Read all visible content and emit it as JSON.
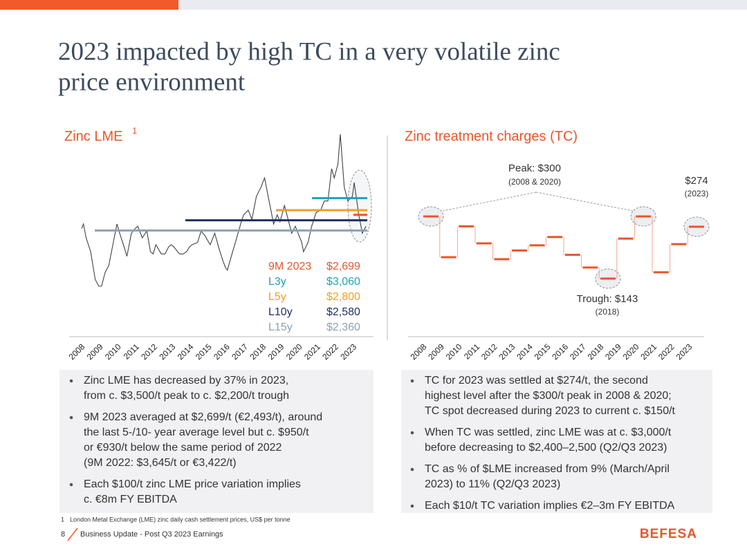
{
  "header": {
    "title_lines": [
      "2023 impacted by high TC in a very volatile zinc",
      "price environment"
    ]
  },
  "chart_data": [
    {
      "type": "line",
      "title": "Zinc LME",
      "title_footnote": "1",
      "x": [
        2008.0,
        2008.1,
        2008.25,
        2008.5,
        2008.75,
        2008.95,
        2009.1,
        2009.3,
        2009.5,
        2009.75,
        2009.95,
        2010.1,
        2010.35,
        2010.5,
        2010.75,
        2010.95,
        2011.1,
        2011.35,
        2011.6,
        2011.8,
        2011.95,
        2012.1,
        2012.4,
        2012.6,
        2012.8,
        2012.95,
        2013.1,
        2013.4,
        2013.6,
        2013.8,
        2013.95,
        2014.1,
        2014.4,
        2014.6,
        2014.8,
        2014.95,
        2015.1,
        2015.35,
        2015.6,
        2015.8,
        2015.95,
        2016.05,
        2016.3,
        2016.6,
        2016.85,
        2016.95,
        2017.2,
        2017.4,
        2017.65,
        2017.9,
        2018.1,
        2018.3,
        2018.6,
        2018.8,
        2018.95,
        2019.2,
        2019.4,
        2019.6,
        2019.8,
        2019.95,
        2020.15,
        2020.25,
        2020.5,
        2020.7,
        2020.95,
        2021.2,
        2021.4,
        2021.6,
        2021.8,
        2021.95,
        2022.15,
        2022.28,
        2022.5,
        2022.7,
        2022.95,
        2023.05,
        2023.3,
        2023.5,
        2023.7
      ],
      "series": [
        {
          "color": "#3d4148",
          "values": [
            2400,
            2500,
            2200,
            1900,
            1300,
            1150,
            1150,
            1450,
            1600,
            2100,
            2500,
            2300,
            2000,
            1800,
            2300,
            2400,
            2450,
            2200,
            2350,
            1900,
            1850,
            2050,
            1850,
            1850,
            2000,
            2050,
            2000,
            1850,
            1850,
            1900,
            2000,
            2050,
            2100,
            2350,
            2250,
            2150,
            2050,
            2300,
            1950,
            1700,
            1550,
            1500,
            1850,
            2250,
            2600,
            2700,
            2800,
            2600,
            3100,
            3300,
            3500,
            3100,
            2500,
            2700,
            2550,
            2900,
            2600,
            2300,
            2450,
            2300,
            2100,
            1900,
            2100,
            2450,
            2750,
            2800,
            3000,
            3000,
            3700,
            3500,
            3800,
            4450,
            3300,
            3000,
            3100,
            3400,
            2700,
            2300,
            2450
          ]
        }
      ],
      "xlim": [
        2008,
        2024
      ],
      "xticks": [
        2008,
        2009,
        2010,
        2011,
        2012,
        2013,
        2014,
        2015,
        2016,
        2017,
        2018,
        2019,
        2020,
        2021,
        2022,
        2023
      ],
      "ylim": [
        1000,
        4600
      ],
      "averages": [
        {
          "name": "9M 2023",
          "value": 2699,
          "value_label": "$2,699",
          "color": "#e8552a"
        },
        {
          "name": "L3y",
          "value": 3060,
          "value_label": "$3,060",
          "color": "#1aa3b8"
        },
        {
          "name": "L5y",
          "value": 2800,
          "value_label": "$2,800",
          "color": "#f0a01e"
        },
        {
          "name": "L10y",
          "value": 2580,
          "value_label": "$2,580",
          "color": "#1f2f5e"
        },
        {
          "name": "L15y",
          "value": 2360,
          "value_label": "$2,360",
          "color": "#8aa2b6"
        }
      ]
    },
    {
      "type": "step",
      "title": "Zinc treatment charges (TC)",
      "categories": [
        "2008",
        "2009",
        "2010",
        "2011",
        "2012",
        "2013",
        "2014",
        "2015",
        "2016",
        "2017",
        "2018",
        "2019",
        "2020",
        "2021",
        "2022",
        "2023"
      ],
      "values": [
        300,
        197,
        275,
        232,
        192,
        214,
        227,
        248,
        203,
        171,
        143,
        244,
        300,
        159,
        230,
        274
      ],
      "color": "#e8552a",
      "ylim": [
        100,
        350
      ],
      "annotations": [
        {
          "text": "Peak: $300",
          "subtext": "(2008 & 2020)"
        },
        {
          "text": "$274",
          "subtext": "(2023)"
        },
        {
          "text": "Trough: $143",
          "subtext": "(2018)"
        }
      ]
    }
  ],
  "bullets_left": [
    [
      "Zinc LME has decreased by 37% in 2023,",
      "from c. $3,500/t peak to c. $2,200/t trough"
    ],
    [
      "9M 2023 averaged at $2,699/t (€2,493/t), around",
      "the last 5-/10- year average level but c. $950/t",
      "or €930/t below the same period of 2022",
      "(9M 2022: $3,645/t or €3,422/t)"
    ],
    [
      "Each $100/t zinc LME price variation implies",
      "c. €8m FY EBITDA"
    ]
  ],
  "bullets_right": [
    [
      "TC for 2023 was settled at $274/t, the second",
      "highest level after the $300/t peak in 2008 & 2020;",
      "TC spot decreased during 2023 to current c. $150/t"
    ],
    [
      "When TC was settled, zinc LME was at c. $3,000/t",
      "before decreasing to $2,400–2,500 (Q2/Q3 2023)"
    ],
    [
      "TC as % of $LME increased from 9% (March/April",
      "2023) to 11% (Q2/Q3 2023)"
    ],
    [
      "Each $10/t TC variation implies €2–3m FY EBITDA"
    ]
  ],
  "footnote": {
    "number": "1",
    "text": "London Metal Exchange (LME) zinc daily cash settlement prices, US$ per tonne"
  },
  "footer": {
    "page": "8",
    "text": "Business Update - Post Q3 2023 Earnings",
    "logo": "BEFESA"
  }
}
